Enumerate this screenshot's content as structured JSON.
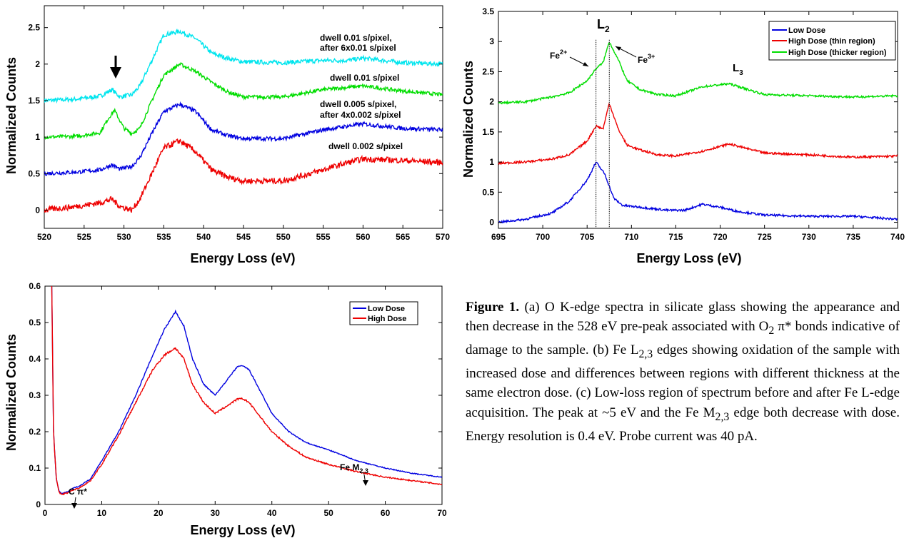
{
  "chart_data": [
    {
      "type": "line",
      "xlabel": "Energy Loss (eV)",
      "ylabel": "Normalized Counts",
      "xlim": [
        520,
        570
      ],
      "ylim": [
        -0.25,
        2.8
      ],
      "xticks": [
        "520",
        "525",
        "530",
        "535",
        "540",
        "545",
        "550",
        "555",
        "560",
        "565",
        "570"
      ],
      "yticks": [
        "0",
        "0.5",
        "1",
        "1.5",
        "2",
        "2.5"
      ],
      "grid": false,
      "series": [
        {
          "label": "dwell 0.01 s/pixel,\nafter 6x0.01 s/pixel",
          "color": "#00e5ee",
          "x": [
            520,
            524,
            527,
            528.5,
            529.5,
            531,
            532,
            533.5,
            535,
            537,
            539,
            541,
            543,
            545,
            550,
            555,
            558,
            560,
            565,
            570
          ],
          "y": [
            1.5,
            1.52,
            1.56,
            1.65,
            1.55,
            1.58,
            1.7,
            2.05,
            2.4,
            2.45,
            2.35,
            2.15,
            2.08,
            2.03,
            2.02,
            2.05,
            2.05,
            2.08,
            2.02,
            2.0
          ]
        },
        {
          "label": "dwell 0.01 s/pixel",
          "color": "#00dd00",
          "x": [
            520,
            524,
            527,
            528,
            528.8,
            530,
            531,
            532,
            533.5,
            535,
            537,
            539,
            541,
            543,
            545,
            550,
            555,
            558,
            560,
            565,
            570
          ],
          "y": [
            1.0,
            1.01,
            1.06,
            1.25,
            1.37,
            1.12,
            1.05,
            1.12,
            1.5,
            1.85,
            2.0,
            1.9,
            1.75,
            1.62,
            1.55,
            1.55,
            1.65,
            1.68,
            1.7,
            1.63,
            1.58
          ]
        },
        {
          "label": "dwell 0.005 s/pixel,\nafter 4x0.002 s/pixel",
          "color": "#0000e0",
          "x": [
            520,
            524,
            527,
            528.5,
            529.5,
            531,
            532,
            533.5,
            535,
            537,
            539,
            541,
            543,
            545,
            550,
            555,
            558,
            560,
            565,
            570
          ],
          "y": [
            0.5,
            0.52,
            0.55,
            0.62,
            0.56,
            0.6,
            0.72,
            1.05,
            1.35,
            1.45,
            1.35,
            1.1,
            1.02,
            0.98,
            0.98,
            1.1,
            1.15,
            1.18,
            1.12,
            1.1
          ]
        },
        {
          "label": "dwell 0.002 s/pixel",
          "color": "#ee0000",
          "x": [
            520,
            524,
            527,
            528.5,
            529.5,
            531,
            532,
            533.5,
            535,
            537,
            539,
            541,
            543,
            545,
            550,
            555,
            558,
            560,
            565,
            570
          ],
          "y": [
            0.0,
            0.05,
            0.1,
            0.15,
            0.05,
            0.0,
            0.15,
            0.5,
            0.85,
            0.95,
            0.8,
            0.55,
            0.45,
            0.4,
            0.4,
            0.55,
            0.65,
            0.7,
            0.68,
            0.65
          ]
        }
      ],
      "annotations": [
        "down-arrow at 528.5 eV"
      ]
    },
    {
      "type": "line",
      "xlabel": "Energy Loss (eV)",
      "ylabel": "Normalized Counts",
      "xlim": [
        695,
        740
      ],
      "ylim": [
        -0.1,
        3.5
      ],
      "xticks": [
        "695",
        "700",
        "705",
        "710",
        "715",
        "720",
        "725",
        "730",
        "735",
        "740"
      ],
      "yticks": [
        "0",
        "0.5",
        "1",
        "1.5",
        "2",
        "2.5",
        "3",
        "3.5"
      ],
      "grid": false,
      "legend_position": "top-right",
      "series": [
        {
          "name": "Low Dose",
          "color": "#0000e0",
          "x": [
            695,
            698,
            701,
            703,
            705,
            706,
            707,
            708,
            709,
            711,
            714,
            716,
            718,
            720,
            722,
            725,
            730,
            735,
            740
          ],
          "y": [
            0.0,
            0.05,
            0.15,
            0.35,
            0.7,
            1.0,
            0.8,
            0.4,
            0.28,
            0.25,
            0.2,
            0.2,
            0.3,
            0.25,
            0.18,
            0.12,
            0.1,
            0.1,
            0.05
          ]
        },
        {
          "name": "High Dose (thin region)",
          "color": "#ee0000",
          "x": [
            695,
            698,
            701,
            703,
            705,
            706,
            706.8,
            707.5,
            708.5,
            709.5,
            711,
            713,
            715,
            718,
            721,
            725,
            730,
            735,
            740
          ],
          "y": [
            0.98,
            1.0,
            1.05,
            1.12,
            1.35,
            1.6,
            1.55,
            1.98,
            1.55,
            1.28,
            1.2,
            1.12,
            1.1,
            1.18,
            1.3,
            1.15,
            1.12,
            1.08,
            1.1
          ]
        },
        {
          "name": "High Dose (thicker region)",
          "color": "#00dd00",
          "x": [
            695,
            698,
            701,
            703,
            705,
            706,
            706.8,
            707.5,
            708.5,
            709.5,
            711,
            713,
            715,
            718,
            721,
            725,
            730,
            735,
            740
          ],
          "y": [
            1.98,
            2.0,
            2.08,
            2.15,
            2.35,
            2.55,
            2.65,
            3.0,
            2.7,
            2.35,
            2.2,
            2.12,
            2.1,
            2.25,
            2.3,
            2.12,
            2.1,
            2.08,
            2.1
          ]
        }
      ],
      "annotations": [
        "L2",
        "L3",
        "Fe2+",
        "Fe3+"
      ],
      "vlines": [
        706,
        707.5
      ]
    },
    {
      "type": "line",
      "xlabel": "Energy Loss (eV)",
      "ylabel": "Normalized Counts",
      "xlim": [
        0,
        70
      ],
      "ylim": [
        0,
        0.6
      ],
      "xticks": [
        "0",
        "10",
        "20",
        "30",
        "40",
        "50",
        "60",
        "70"
      ],
      "yticks": [
        "0",
        "0.1",
        "0.2",
        "0.3",
        "0.4",
        "0.5",
        "0.6"
      ],
      "grid": false,
      "legend_position": "top-right",
      "series": [
        {
          "name": "Low Dose",
          "color": "#0000e0",
          "x": [
            1.2,
            1.5,
            2,
            2.5,
            3,
            4,
            5,
            6,
            8,
            10,
            13,
            16,
            19,
            21,
            23,
            24.5,
            26,
            28,
            30,
            32,
            34,
            35,
            36,
            38,
            40,
            43,
            46,
            50,
            55,
            60,
            65,
            70
          ],
          "y": [
            0.6,
            0.2,
            0.07,
            0.035,
            0.03,
            0.035,
            0.045,
            0.05,
            0.07,
            0.12,
            0.2,
            0.3,
            0.41,
            0.48,
            0.53,
            0.49,
            0.4,
            0.33,
            0.3,
            0.34,
            0.38,
            0.38,
            0.37,
            0.31,
            0.25,
            0.2,
            0.17,
            0.15,
            0.12,
            0.1,
            0.085,
            0.075
          ]
        },
        {
          "name": "High Dose",
          "color": "#ee0000",
          "x": [
            1.2,
            1.5,
            2,
            2.5,
            3,
            4,
            5,
            6,
            8,
            10,
            13,
            16,
            19,
            21,
            23,
            24.5,
            26,
            28,
            30,
            32,
            34,
            35,
            36,
            38,
            40,
            43,
            46,
            50,
            55,
            60,
            65,
            70
          ],
          "y": [
            0.6,
            0.2,
            0.07,
            0.032,
            0.028,
            0.032,
            0.04,
            0.045,
            0.065,
            0.11,
            0.19,
            0.28,
            0.37,
            0.41,
            0.43,
            0.4,
            0.33,
            0.28,
            0.25,
            0.27,
            0.29,
            0.29,
            0.28,
            0.24,
            0.2,
            0.16,
            0.13,
            0.11,
            0.09,
            0.075,
            0.065,
            0.055
          ]
        }
      ],
      "annotations": [
        "C π*",
        "Fe M2,3"
      ]
    }
  ],
  "panel_a": {
    "xlabel": "Energy Loss (eV)",
    "ylabel": "Normalized Counts",
    "labels": {
      "cyan_l1": "dwell 0.01 s/pixel,",
      "cyan_l2": "after 6x0.01 s/pixel",
      "green": "dwell 0.01 s/pixel",
      "blue_l1": "dwell 0.005 s/pixel,",
      "blue_l2": "after 4x0.002 s/pixel",
      "red": "dwell 0.002 s/pixel"
    }
  },
  "panel_b": {
    "xlabel": "Energy Loss (eV)",
    "ylabel": "Normalized Counts",
    "legend": [
      "Low Dose",
      "High Dose (thin region)",
      "High Dose (thicker region)"
    ],
    "L2": "L",
    "L2_sub": "2",
    "L3": "L",
    "L3_sub": "3",
    "fe2": "Fe",
    "fe2_sup": "2+",
    "fe3": "Fe",
    "fe3_sup": "3+"
  },
  "panel_c": {
    "xlabel": "Energy Loss (eV)",
    "ylabel": "Normalized Counts",
    "legend": [
      "Low Dose",
      "High Dose"
    ],
    "c_pi": "C π*",
    "fe_m": "Fe M",
    "fe_m_sub": "2,3"
  },
  "caption": {
    "figure_label": "Figure 1.",
    "t1": " (a) O K-edge spectra in silicate glass showing the appearance and then decrease in the 528 eV pre-peak associated with O",
    "s1": "2",
    "t2": " π* bonds indicative of damage to the sample. (b) Fe L",
    "s2": "2,3",
    "t3": " edges showing oxidation of the sample with increased dose and differences between regions with different thickness at the same electron dose. (c) Low-loss region of spectrum before and after Fe L-edge acquisition. The peak at ~5 eV and the Fe M",
    "s3": "2,3",
    "t4": " edge both decrease with dose. Energy resolution is 0.4 eV. Probe current was 40 pA."
  },
  "colors": {
    "red": "#ee0000",
    "green": "#00dd00",
    "blue": "#0000e0",
    "cyan": "#00e5ee"
  }
}
